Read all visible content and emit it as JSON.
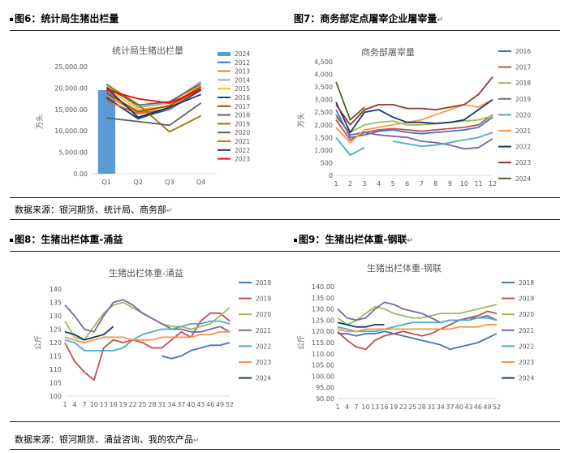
{
  "header": {
    "fig6": "图6：统计局生猪出栏量",
    "fig7": "图7：商务部定点屠宰企业屠宰量",
    "fig8": "图8：生猪出栏体重-涌益",
    "fig9": "图9：生猪出栏体重-钢联"
  },
  "source_top": "数据来源：银河期货、统计局、商务部",
  "source_bottom": "数据来源：银河期货、涌益咨询、我的农产品",
  "return_mark": "↵",
  "chart_data": [
    {
      "id": "fig6",
      "type": "line",
      "title": "统计局生猪出栏量",
      "ylabel": "万头",
      "ylim": [
        0,
        25000
      ],
      "yticks": [
        "0.00",
        "5,000.00",
        "10,000.00",
        "15,000.00",
        "20,000.00",
        "25,000.00"
      ],
      "categories": [
        "Q1",
        "Q2",
        "Q3",
        "Q4"
      ],
      "bar": {
        "name": "2024",
        "color": "#5b9bd5",
        "values": [
          19500
        ]
      },
      "series": [
        {
          "name": "2012",
          "color": "#4472c4",
          "values": [
            17500,
            13000,
            15000,
            19500
          ]
        },
        {
          "name": "2013",
          "color": "#ed7d31",
          "values": [
            18200,
            14200,
            16000,
            20500
          ]
        },
        {
          "name": "2014",
          "color": "#a5a5a5",
          "values": [
            21000,
            15500,
            16500,
            21500
          ]
        },
        {
          "name": "2015",
          "color": "#ffc000",
          "values": [
            20000,
            15000,
            15800,
            21000
          ]
        },
        {
          "name": "2016",
          "color": "#264478",
          "values": [
            17800,
            12800,
            15300,
            19500
          ]
        },
        {
          "name": "2017",
          "color": "#9e480e",
          "values": [
            18800,
            14500,
            15800,
            20200
          ]
        },
        {
          "name": "2018",
          "color": "#636363",
          "values": [
            20200,
            16000,
            16800,
            21000
          ]
        },
        {
          "name": "2019",
          "color": "#997300",
          "values": [
            20800,
            16200,
            9800,
            13500
          ]
        },
        {
          "name": "2020",
          "color": "#5f5f5f",
          "values": [
            13000,
            12200,
            11300,
            16500
          ]
        },
        {
          "name": "2021",
          "color": "#d2691e",
          "values": [
            17000,
            14000,
            15200,
            20000
          ]
        },
        {
          "name": "2022",
          "color": "#203864",
          "values": [
            20000,
            13200,
            15500,
            18500
          ]
        },
        {
          "name": "2023",
          "color": "#ff0000",
          "values": [
            19500,
            17500,
            16500,
            19700
          ]
        }
      ]
    },
    {
      "id": "fig7",
      "type": "line",
      "title": "商务部屠宰量",
      "ylabel": "万头",
      "ylim": [
        0,
        4500
      ],
      "yticks": [
        "0",
        "500",
        "1,000",
        "1,500",
        "2,000",
        "2,500",
        "3,000",
        "3,500",
        "4,000",
        "4,500"
      ],
      "categories": [
        "1",
        "2",
        "3",
        "4",
        "5",
        "6",
        "7",
        "8",
        "9",
        "10",
        "11",
        "12"
      ],
      "series": [
        {
          "name": "2016",
          "color": "#4472c4",
          "values": [
            2600,
            1500,
            1600,
            1750,
            1800,
            1700,
            1650,
            1700,
            1750,
            1800,
            1900,
            2300
          ]
        },
        {
          "name": "2017",
          "color": "#c0504d",
          "values": [
            2200,
            1400,
            1700,
            1800,
            1850,
            1800,
            1750,
            1800,
            1850,
            1900,
            2000,
            2400
          ]
        },
        {
          "name": "2018",
          "color": "#9bbb59",
          "values": [
            2300,
            1700,
            2000,
            2100,
            2150,
            2000,
            2000,
            2050,
            2100,
            2150,
            2200,
            2350
          ]
        },
        {
          "name": "2019",
          "color": "#8064a2",
          "values": [
            2400,
            1600,
            1700,
            1600,
            1550,
            1500,
            1350,
            1300,
            1200,
            1050,
            1100,
            1450
          ]
        },
        {
          "name": "2020",
          "color": "#4bacc6",
          "values": [
            1500,
            800,
            1100,
            null,
            1350,
            1250,
            1150,
            1200,
            1300,
            1400,
            1500,
            1700
          ]
        },
        {
          "name": "2021",
          "color": "#f79646",
          "values": [
            1900,
            1300,
            1800,
            1900,
            2000,
            2100,
            2200,
            2400,
            2600,
            2800,
            2700,
            3000
          ]
        },
        {
          "name": "2022",
          "color": "#1f3864",
          "values": [
            2900,
            1700,
            2500,
            2600,
            2300,
            2100,
            2100,
            2050,
            2100,
            2200,
            2600,
            3000
          ]
        },
        {
          "name": "2023",
          "color": "#943634",
          "values": [
            2800,
            2000,
            2600,
            2800,
            2800,
            2650,
            2650,
            2600,
            2700,
            2800,
            3200,
            3900
          ]
        },
        {
          "name": "2024",
          "color": "#4f6228",
          "values": [
            3700,
            2200,
            2700,
            null,
            null,
            null,
            null,
            null,
            null,
            null,
            null,
            null
          ]
        }
      ]
    },
    {
      "id": "fig8",
      "type": "line",
      "title": "生猪出栏体重-涌益",
      "ylabel": "公斤",
      "ylim": [
        100,
        140
      ],
      "yticks": [
        "100",
        "105",
        "110",
        "115",
        "120",
        "125",
        "130",
        "135",
        "140"
      ],
      "categories": [
        "1",
        "4",
        "7",
        "10",
        "13",
        "16",
        "19",
        "22",
        "25",
        "28",
        "31",
        "34",
        "37",
        "40",
        "43",
        "46",
        "49",
        "52"
      ],
      "series": [
        {
          "name": "2018",
          "color": "#4472c4",
          "values": [
            null,
            null,
            null,
            null,
            null,
            null,
            null,
            null,
            null,
            null,
            115,
            114,
            115,
            117,
            118,
            119,
            119,
            120
          ]
        },
        {
          "name": "2019",
          "color": "#c0504d",
          "values": [
            120,
            113,
            109,
            106,
            118,
            121,
            120,
            121,
            120,
            118,
            118,
            121,
            124,
            122,
            128,
            131,
            131,
            128
          ]
        },
        {
          "name": "2020",
          "color": "#9bbb59",
          "values": [
            128,
            122,
            121,
            126,
            131,
            134,
            135,
            133,
            131,
            129,
            127,
            126,
            126,
            125,
            126,
            127,
            130,
            133
          ]
        },
        {
          "name": "2021",
          "color": "#8064a2",
          "values": [
            134,
            130,
            125,
            124,
            130,
            135,
            136,
            134,
            131,
            129,
            127,
            125,
            125,
            124,
            124,
            125,
            126,
            124
          ]
        },
        {
          "name": "2022",
          "color": "#4bacc6",
          "values": [
            121,
            120,
            117,
            117,
            117,
            117,
            118,
            121,
            123,
            124,
            125,
            125,
            126,
            127,
            127,
            128,
            128,
            127
          ]
        },
        {
          "name": "2023",
          "color": "#f79646",
          "values": [
            122,
            121,
            120,
            121,
            122,
            122,
            122,
            121,
            121,
            121,
            122,
            122,
            122,
            122,
            123,
            123,
            124,
            124
          ]
        },
        {
          "name": "2024",
          "color": "#1f3864",
          "values": [
            124,
            123,
            121,
            122,
            123,
            126,
            null,
            null,
            null,
            null,
            null,
            null,
            null,
            null,
            null,
            null,
            null,
            null
          ]
        }
      ]
    },
    {
      "id": "fig9",
      "type": "line",
      "title": "生猪出栏体重-钢联",
      "ylabel": "公斤",
      "ylim": [
        90,
        140
      ],
      "yticks": [
        "90.00",
        "95.00",
        "100.00",
        "105.00",
        "110.00",
        "115.00",
        "120.00",
        "125.00",
        "130.00",
        "135.00",
        "140.00"
      ],
      "categories": [
        "1",
        "4",
        "7",
        "10",
        "13",
        "16",
        "19",
        "22",
        "25",
        "28",
        "31",
        "34",
        "37",
        "40",
        "43",
        "46",
        "49",
        "52"
      ],
      "series": [
        {
          "name": "2018",
          "color": "#4472c4",
          "values": [
            119,
            119,
            118,
            119,
            119,
            120,
            119,
            118,
            117,
            116,
            115,
            114,
            112,
            113,
            114,
            115,
            117,
            119
          ]
        },
        {
          "name": "2019",
          "color": "#c0504d",
          "values": [
            120,
            116,
            113,
            112,
            116,
            118,
            119,
            120,
            119,
            118,
            119,
            121,
            123,
            125,
            126,
            127,
            129,
            128
          ]
        },
        {
          "name": "2020",
          "color": "#9bbb59",
          "values": [
            126,
            123,
            125,
            128,
            131,
            130,
            128,
            127,
            126,
            126,
            127,
            128,
            128,
            128,
            129,
            130,
            131,
            132
          ]
        },
        {
          "name": "2021",
          "color": "#8064a2",
          "values": [
            130,
            126,
            125,
            126,
            130,
            133,
            132,
            130,
            129,
            128,
            126,
            124,
            125,
            125,
            126,
            126,
            127,
            125
          ]
        },
        {
          "name": "2022",
          "color": "#4bacc6",
          "values": [
            122,
            121,
            120,
            120,
            120,
            121,
            122,
            123,
            124,
            124,
            124,
            124,
            125,
            125,
            125,
            126,
            126,
            125
          ]
        },
        {
          "name": "2023",
          "color": "#f79646",
          "values": [
            121,
            120,
            120,
            121,
            121,
            121,
            121,
            121,
            121,
            121,
            121,
            121,
            121,
            122,
            122,
            122,
            123,
            123
          ]
        },
        {
          "name": "2024",
          "color": "#1f3864",
          "values": [
            124,
            123,
            122,
            122,
            123,
            123,
            null,
            null,
            null,
            null,
            null,
            null,
            null,
            null,
            null,
            null,
            null,
            null
          ]
        }
      ]
    }
  ]
}
